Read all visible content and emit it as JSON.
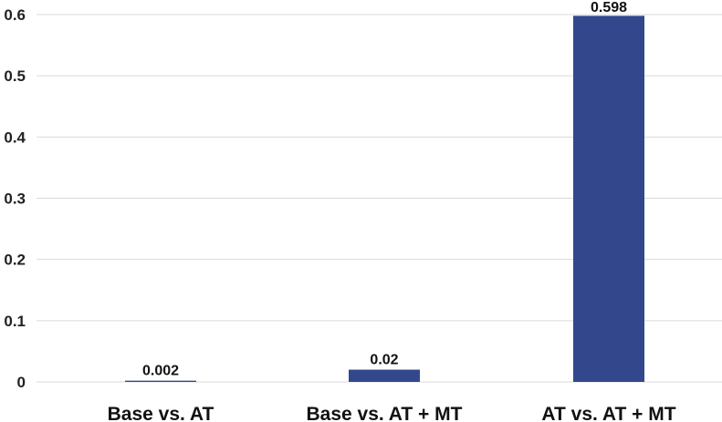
{
  "chart_data": {
    "type": "bar",
    "categories": [
      "Base vs. AT",
      "Base vs. AT + MT",
      "AT vs. AT + MT"
    ],
    "values": [
      0.002,
      0.02,
      0.598
    ],
    "data_labels": [
      "0.002",
      "0.02",
      "0.598"
    ],
    "y_ticks": [
      "0",
      "0.1",
      "0.2",
      "0.3",
      "0.4",
      "0.5",
      "0.6"
    ],
    "ylim": [
      0,
      0.6
    ],
    "grid": true,
    "legend": "none",
    "bar_color": "#33488c"
  }
}
